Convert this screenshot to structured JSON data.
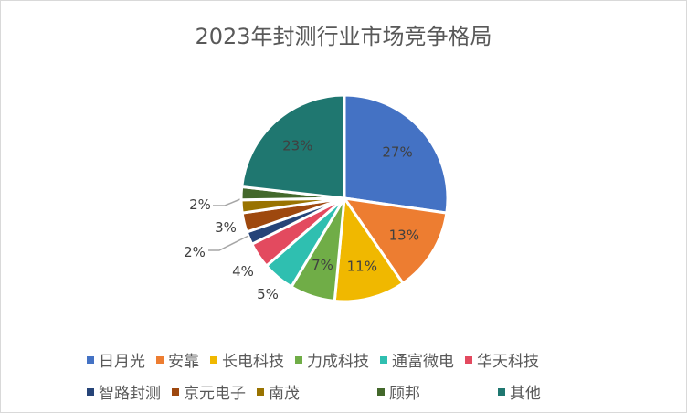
{
  "chart_data": {
    "type": "pie",
    "title": "2023年封测行业市场竞争格局",
    "legend_position": "bottom",
    "unit": "%",
    "slices": [
      {
        "name": "日月光",
        "value": 27,
        "label": "27%",
        "color": "#4472c4"
      },
      {
        "name": "安靠",
        "value": 13,
        "label": "13%",
        "color": "#ed7d31"
      },
      {
        "name": "长电科技",
        "value": 11,
        "label": "11%",
        "color": "#f0b800"
      },
      {
        "name": "力成科技",
        "value": 7,
        "label": "7%",
        "color": "#70ad47"
      },
      {
        "name": "通富微电",
        "value": 5,
        "label": "5%",
        "color": "#2fbfb0"
      },
      {
        "name": "华天科技",
        "value": 4,
        "label": "4%",
        "color": "#e34a5f"
      },
      {
        "name": "智路封测",
        "value": 2,
        "label": "2%",
        "color": "#264478"
      },
      {
        "name": "京元电子",
        "value": 3,
        "label": "3%",
        "color": "#9e480e"
      },
      {
        "name": "南茂",
        "value": 2,
        "label": "2%",
        "color": "#997300"
      },
      {
        "name": "顾邦",
        "value": 2,
        "label": null,
        "color": "#43682b"
      },
      {
        "name": "其他",
        "value": 23,
        "label": "23%",
        "color": "#1f7770"
      }
    ]
  }
}
